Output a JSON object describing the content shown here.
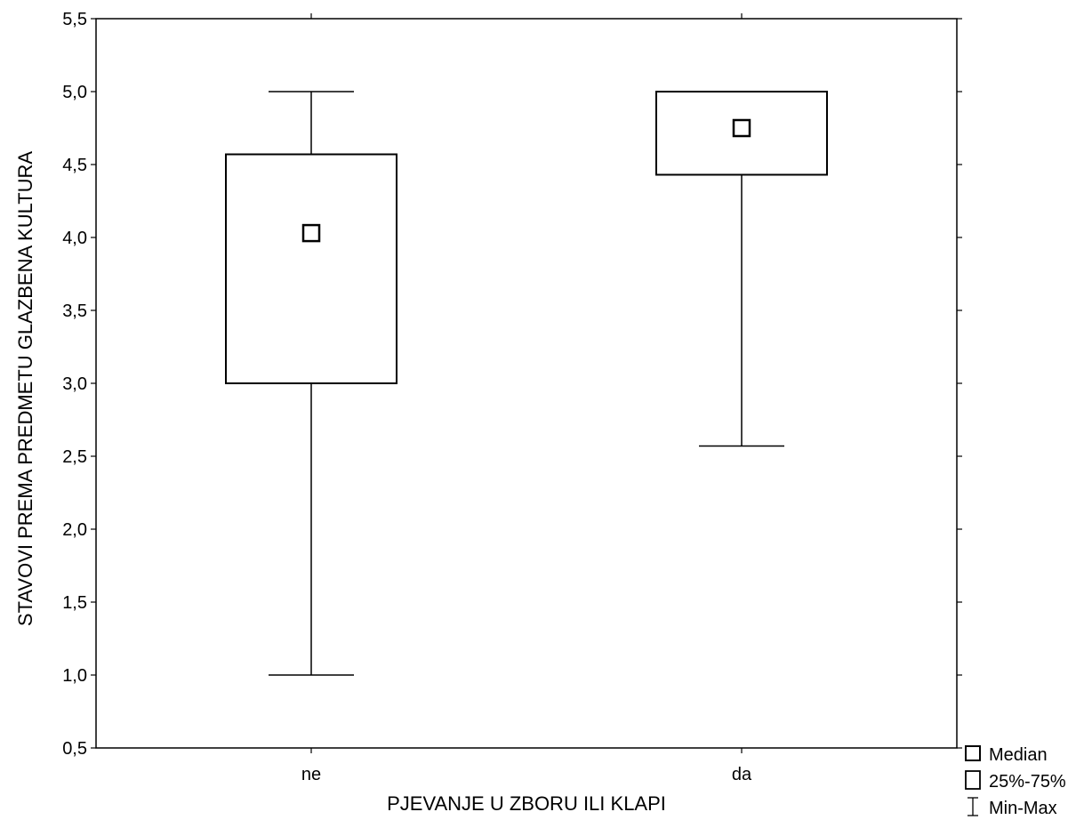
{
  "chart_data": {
    "type": "boxplot",
    "title": "",
    "xlabel": "PJEVANJE U ZBORU ILI KLAPI",
    "ylabel": "STAVOVI PREMA PREDMETU GLAZBENA KULTURA",
    "ylim": [
      0.5,
      5.5
    ],
    "yticks": [
      0.5,
      1.0,
      1.5,
      2.0,
      2.5,
      3.0,
      3.5,
      4.0,
      4.5,
      5.0,
      5.5
    ],
    "ytick_labels": [
      "0,5",
      "1,0",
      "1,5",
      "2,0",
      "2,5",
      "3,0",
      "3,5",
      "4,0",
      "4,5",
      "5,0",
      "5,5"
    ],
    "categories": [
      "ne",
      "da"
    ],
    "boxes": [
      {
        "category": "ne",
        "min": 1.0,
        "q1": 3.0,
        "median": 4.03,
        "q3": 4.57,
        "max": 5.0
      },
      {
        "category": "da",
        "min": 2.57,
        "q1": 4.43,
        "median": 4.75,
        "q3": 5.0,
        "max": 5.0
      }
    ],
    "grid": false,
    "legend_position": "bottom-right",
    "legend": [
      {
        "label": "Median",
        "symbol": "median-square"
      },
      {
        "label": "25%-75%",
        "symbol": "box"
      },
      {
        "label": "Min-Max",
        "symbol": "whisker"
      }
    ],
    "colors": {
      "line": "#000000",
      "fill": "#ffffff"
    }
  }
}
